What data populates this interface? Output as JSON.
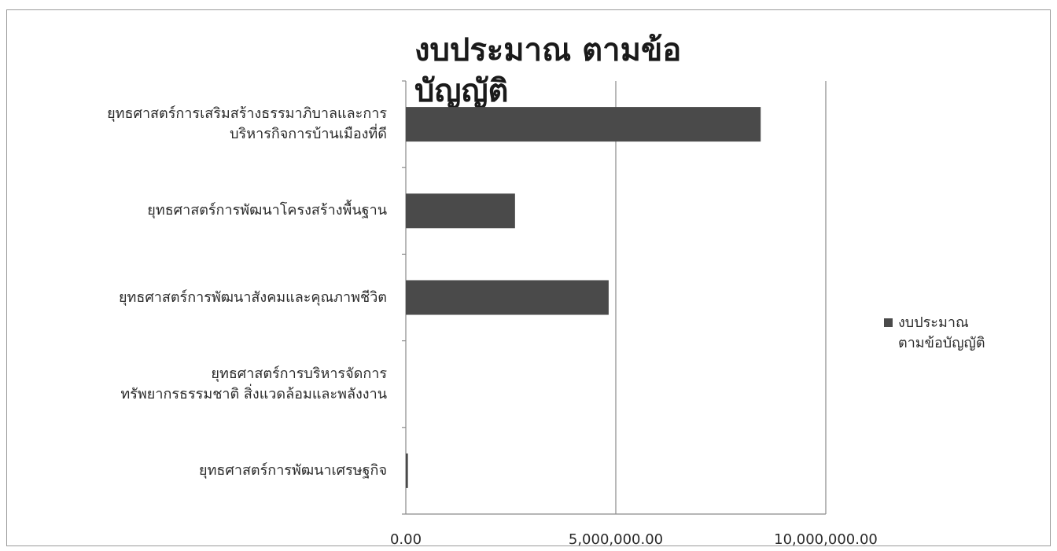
{
  "chart_data": {
    "type": "bar",
    "orientation": "horizontal",
    "title": "งบประมาณ ตามข้อบัญญัติ",
    "categories": [
      "ยุทธศาสตร์การเสริมสร้างธรรมาภิบาลและการบริหารกิจการบ้านเมืองที่ดี",
      "ยุทธศาสตร์การพัฒนาโครงสร้างพื้นฐาน",
      "ยุทธศาสตร์การพัฒนาสังคมและคุณภาพชีวิต",
      "ยุทธศาสตร์การบริหารจัดการทรัพยากรธรรมชาติ สิ่งแวดล้อมและพลังงาน",
      "ยุทธศาสตร์การพัฒนาเศรษฐกิจ"
    ],
    "category_lines": [
      [
        "ยุทธศาสตร์การเสริมสร้างธรรมาภิบาลและการ",
        "บริหารกิจการบ้านเมืองที่ดี"
      ],
      [
        "ยุทธศาสตร์การพัฒนาโครงสร้างพื้นฐาน"
      ],
      [
        "ยุทธศาสตร์การพัฒนาสังคมและคุณภาพชีวิต"
      ],
      [
        "ยุทธศาสตร์การบริหารจัดการ",
        "ทรัพยากรธรรมชาติ สิ่งแวดล้อมและพลังงาน"
      ],
      [
        "ยุทธศาสตร์การพัฒนาเศรษฐกิจ"
      ]
    ],
    "series": [
      {
        "name": "งบประมาณ ตามข้อบัญญัติ",
        "values": [
          8450000,
          2600000,
          4830000,
          0,
          50000
        ]
      }
    ],
    "legend_lines": [
      "งบประมาณ",
      "ตามข้อบัญญัติ"
    ],
    "xlim": [
      0,
      10000000
    ],
    "ticks": [
      0,
      5000000,
      10000000
    ],
    "tick_labels": [
      "0.00",
      "5,000,000.00",
      "10,000,000.00"
    ],
    "grid": "vertical major",
    "legend_position": "right",
    "bar_color": "#4a4a4a",
    "grid_color": "#8a8a8a"
  }
}
